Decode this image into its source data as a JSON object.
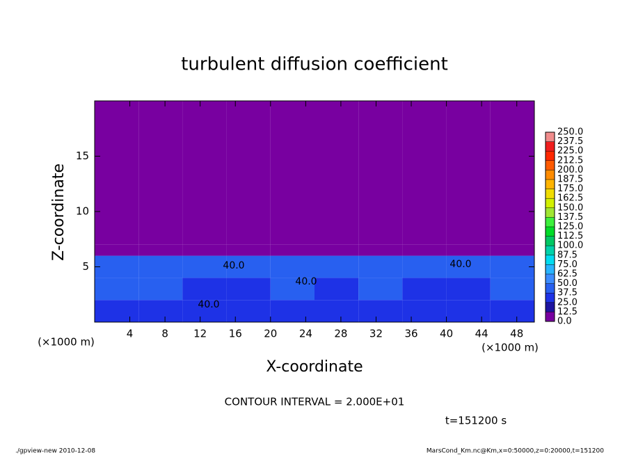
{
  "chart_data": {
    "type": "heatmap",
    "title": "turbulent diffusion coefficient",
    "x_label": "X-coordinate",
    "y_label": "Z-coordinate",
    "x_unit": "(×1000 m)",
    "y_unit": "(×1000 m)",
    "contour_interval": "CONTOUR INTERVAL = 2.000E+01",
    "time_label": "t=151200 s",
    "footer_left": "./gpview-new   2010-12-08",
    "footer_right": "MarsCond_Km.nc@Km,x=0:50000,z=0:20000,t=151200",
    "contour_label": "40.0",
    "xlim": [
      0,
      50
    ],
    "ylim": [
      0,
      20
    ],
    "xticks": [
      4,
      8,
      12,
      16,
      20,
      24,
      28,
      32,
      36,
      40,
      44,
      48
    ],
    "yticks": [
      5,
      10,
      15
    ],
    "xbins": [
      0,
      5,
      10,
      15,
      20,
      25,
      30,
      35,
      40,
      45,
      50
    ],
    "ybins": [
      0,
      2,
      4,
      6,
      7,
      20
    ],
    "z": [
      [
        30,
        35,
        30,
        30,
        25,
        30,
        25,
        25,
        35,
        30
      ],
      [
        45,
        40,
        30,
        30,
        45,
        30,
        45,
        25,
        35,
        40
      ],
      [
        40,
        45,
        45,
        45,
        40,
        40,
        45,
        45,
        40,
        45
      ],
      [
        10,
        10,
        5,
        5,
        10,
        5,
        5,
        5,
        10,
        5
      ],
      [
        0,
        0,
        0,
        0,
        0,
        0,
        0,
        0,
        0,
        0
      ]
    ],
    "colorbar_ticks": [
      {
        "value": 0,
        "label": "0.0"
      },
      12.5,
      {
        "value": 25,
        "label": "25.0"
      },
      37.5,
      {
        "value": 50,
        "label": "50.0"
      },
      62.5,
      {
        "value": 75,
        "label": "75.0"
      },
      87.5,
      {
        "value": 100,
        "label": "100.0"
      },
      112.5,
      {
        "value": 125,
        "label": "125.0"
      },
      137.5,
      {
        "value": 150,
        "label": "150.0"
      },
      162.5,
      {
        "value": 175,
        "label": "175.0"
      },
      187.5,
      {
        "value": 200,
        "label": "200.0"
      },
      212.5,
      {
        "value": 225,
        "label": "225.0"
      },
      237.5,
      {
        "value": 250,
        "label": "250.0"
      }
    ],
    "colors": [
      "#7800a0",
      "#1e14a0",
      "#1e32e6",
      "#2860f0",
      "#3c8cff",
      "#28b4ff",
      "#00dcf0",
      "#00d2aa",
      "#00c864",
      "#00dc28",
      "#3cf03c",
      "#a0e632",
      "#d2f000",
      "#f0dc00",
      "#ffb400",
      "#ff8c00",
      "#ff5a00",
      "#ff2800",
      "#f01e1e",
      "#f08c8c"
    ]
  }
}
